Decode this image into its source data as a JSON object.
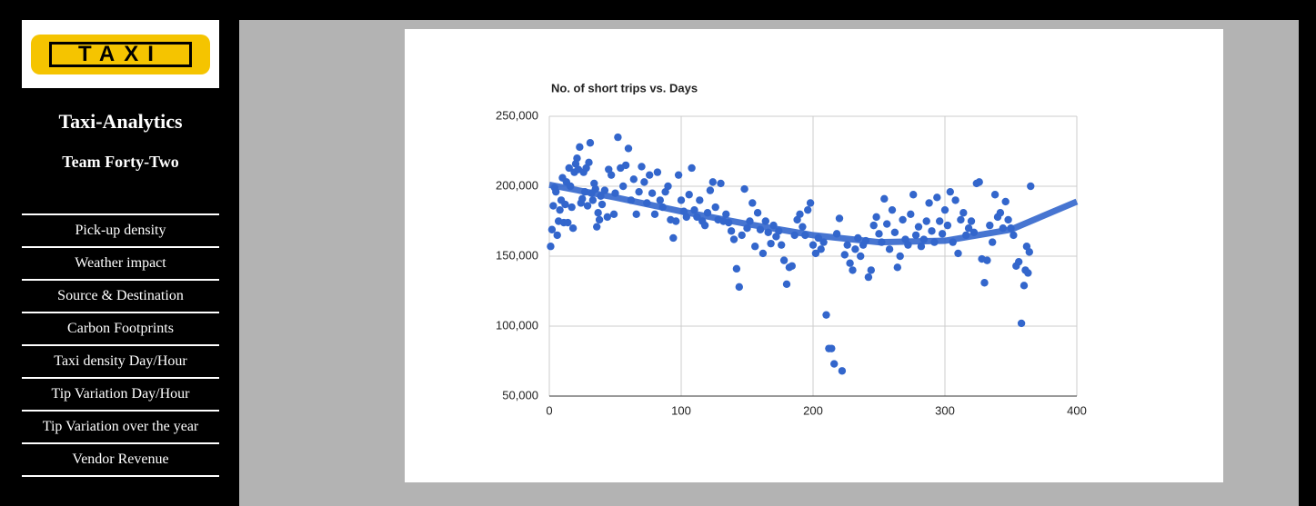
{
  "sidebar": {
    "logo": "TAXI",
    "title": "Taxi-Analytics",
    "subtitle": "Team Forty-Two",
    "menu": [
      "Pick-up density",
      "Weather impact",
      "Source & Destination",
      "Carbon Footprints",
      "Taxi density Day/Hour",
      "Tip Variation Day/Hour",
      "Tip Variation over the year",
      "Vendor Revenue"
    ]
  },
  "chart_data": {
    "type": "scatter",
    "title": "No. of short trips vs. Days",
    "color": "#3366cc",
    "grid": true,
    "xlim": [
      0,
      400
    ],
    "xticks": [
      0,
      100,
      200,
      300,
      400
    ],
    "ylim": [
      50000,
      250000
    ],
    "yticks": [
      {
        "value": 50000,
        "label": "50,000"
      },
      {
        "value": 100000,
        "label": "100,000"
      },
      {
        "value": 150000,
        "label": "150,000"
      },
      {
        "value": 200000,
        "label": "200,000"
      },
      {
        "value": 250000,
        "label": "250,000"
      }
    ],
    "x": [
      1,
      2,
      3,
      4,
      5,
      6,
      7,
      8,
      9,
      10,
      11,
      12,
      13,
      14,
      15,
      16,
      17,
      18,
      19,
      20,
      21,
      22,
      23,
      24,
      25,
      26,
      27,
      28,
      29,
      30,
      31,
      32,
      33,
      34,
      35,
      36,
      37,
      38,
      39,
      40,
      42,
      44,
      45,
      47,
      49,
      50,
      52,
      54,
      56,
      58,
      60,
      62,
      64,
      66,
      68,
      70,
      72,
      74,
      76,
      78,
      80,
      82,
      84,
      86,
      88,
      90,
      92,
      94,
      96,
      98,
      100,
      102,
      104,
      106,
      108,
      110,
      112,
      114,
      116,
      118,
      120,
      122,
      124,
      126,
      128,
      130,
      132,
      134,
      136,
      138,
      140,
      142,
      144,
      146,
      148,
      150,
      152,
      154,
      156,
      158,
      160,
      162,
      164,
      166,
      168,
      170,
      172,
      174,
      176,
      178,
      180,
      182,
      184,
      186,
      188,
      190,
      192,
      194,
      196,
      198,
      200,
      202,
      204,
      206,
      208,
      210,
      212,
      214,
      216,
      218,
      220,
      222,
      224,
      226,
      228,
      230,
      232,
      234,
      236,
      238,
      240,
      242,
      244,
      246,
      248,
      250,
      252,
      254,
      256,
      258,
      260,
      262,
      264,
      266,
      268,
      270,
      272,
      274,
      276,
      278,
      280,
      282,
      284,
      286,
      288,
      290,
      292,
      294,
      296,
      298,
      300,
      302,
      304,
      306,
      308,
      310,
      312,
      314,
      316,
      318,
      320,
      322,
      324,
      326,
      328,
      330,
      332,
      334,
      336,
      338,
      340,
      342,
      344,
      346,
      348,
      350,
      352,
      354,
      356,
      358,
      360,
      361,
      362,
      363,
      364,
      365
    ],
    "values": [
      157000,
      169000,
      186000,
      199000,
      196000,
      165000,
      175000,
      183000,
      190000,
      206000,
      174000,
      187000,
      203000,
      174000,
      213000,
      200000,
      185000,
      170000,
      210000,
      216000,
      220000,
      212000,
      228000,
      188000,
      191000,
      210000,
      196000,
      213000,
      186000,
      217000,
      231000,
      195000,
      190000,
      202000,
      198000,
      171000,
      181000,
      176000,
      193000,
      187000,
      197000,
      178000,
      212000,
      208000,
      180000,
      195000,
      235000,
      213000,
      200000,
      215000,
      227000,
      190000,
      205000,
      180000,
      196000,
      214000,
      203000,
      188000,
      208000,
      195000,
      180000,
      210000,
      190000,
      185000,
      196000,
      200000,
      176000,
      163000,
      175000,
      208000,
      190000,
      182000,
      178000,
      194000,
      213000,
      183000,
      178000,
      190000,
      175000,
      172000,
      181000,
      197000,
      203000,
      185000,
      176000,
      202000,
      175000,
      180000,
      174000,
      168000,
      162000,
      141000,
      128000,
      165000,
      198000,
      170000,
      175000,
      188000,
      157000,
      181000,
      169000,
      152000,
      175000,
      167000,
      159000,
      172000,
      164000,
      168000,
      158000,
      147000,
      130000,
      142000,
      143000,
      165000,
      176000,
      180000,
      171000,
      165000,
      183000,
      188000,
      158000,
      152000,
      163000,
      155000,
      160000,
      108000,
      84000,
      84000,
      73000,
      166000,
      177000,
      68000,
      151000,
      158000,
      145000,
      140000,
      155000,
      163000,
      150000,
      158000,
      161000,
      135000,
      140000,
      172000,
      178000,
      166000,
      160000,
      191000,
      173000,
      155000,
      183000,
      167000,
      142000,
      150000,
      176000,
      162000,
      158000,
      180000,
      194000,
      165000,
      171000,
      157000,
      162000,
      175000,
      188000,
      168000,
      160000,
      192000,
      175000,
      166000,
      183000,
      172000,
      196000,
      160000,
      190000,
      152000,
      176000,
      181000,
      165000,
      170000,
      175000,
      167000,
      202000,
      203000,
      148000,
      131000,
      147000,
      172000,
      160000,
      194000,
      178000,
      181000,
      170000,
      189000,
      176000,
      170000,
      165000,
      143000,
      146000,
      102000,
      129000,
      140000,
      157000,
      138000,
      153000,
      200000
    ],
    "trendline": {
      "color": "#3366cc",
      "x": [
        0,
        50,
        100,
        150,
        200,
        250,
        300,
        350,
        400
      ],
      "values": [
        201000,
        192000,
        182000,
        173000,
        165000,
        160000,
        161000,
        169000,
        189000
      ]
    }
  }
}
